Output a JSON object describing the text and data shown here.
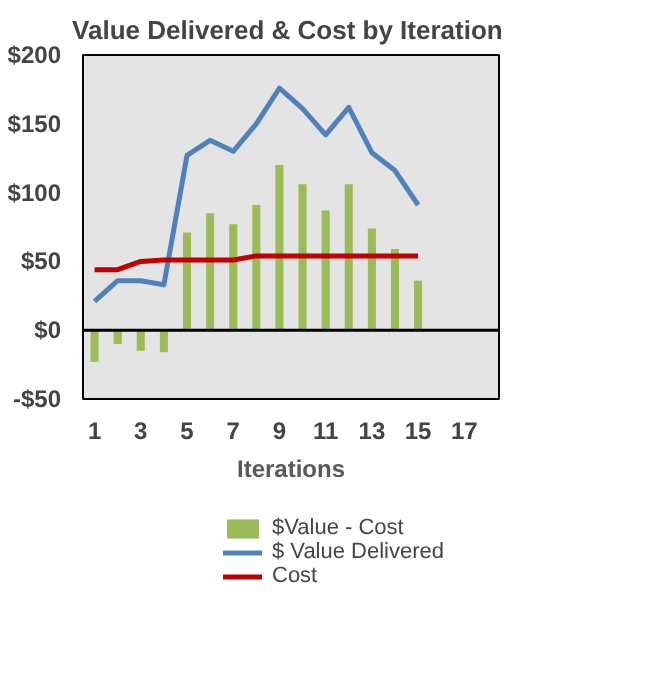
{
  "chart_data": {
    "type": "bar",
    "title": "Value Delivered  & Cost by Iteration",
    "xlabel": "Iterations",
    "x": [
      1,
      2,
      3,
      4,
      5,
      6,
      7,
      8,
      9,
      10,
      11,
      12,
      13,
      14,
      15
    ],
    "series": [
      {
        "name": "$Value - Cost",
        "color": "#9bbb59",
        "values": [
          -23,
          -10,
          -15,
          -16,
          71,
          85,
          77,
          91,
          120,
          106,
          87,
          106,
          74,
          59,
          36
        ]
      },
      {
        "name": "$ Value Delivered",
        "type": "line",
        "color": "#4f81bd",
        "values": [
          21,
          36,
          36,
          33,
          127,
          138,
          130,
          150,
          176,
          161,
          142,
          162,
          129,
          116,
          91
        ]
      },
      {
        "name": "Cost",
        "type": "line",
        "color": "#c00000",
        "values": [
          44,
          44,
          50,
          51,
          51,
          51,
          51,
          54,
          54,
          54,
          54,
          54,
          54,
          54,
          54
        ]
      }
    ],
    "xlim": [
      0.5,
      18.5
    ],
    "xticks": [
      1,
      3,
      5,
      7,
      9,
      11,
      13,
      15,
      17
    ],
    "ylim": [
      -50,
      200
    ],
    "yticks": [
      {
        "value": -50,
        "label": "-$50"
      },
      {
        "value": 0,
        "label": "$0"
      },
      {
        "value": 50,
        "label": "$50"
      },
      {
        "value": 100,
        "label": "$100"
      },
      {
        "value": 150,
        "label": "$150"
      },
      {
        "value": 200,
        "label": "$200"
      }
    ],
    "ref_lines": [
      {
        "axis": "y",
        "value": 0,
        "color": "#000000"
      }
    ],
    "grid": false,
    "legend": "bottom",
    "marker": "none",
    "line_style": "solid"
  }
}
